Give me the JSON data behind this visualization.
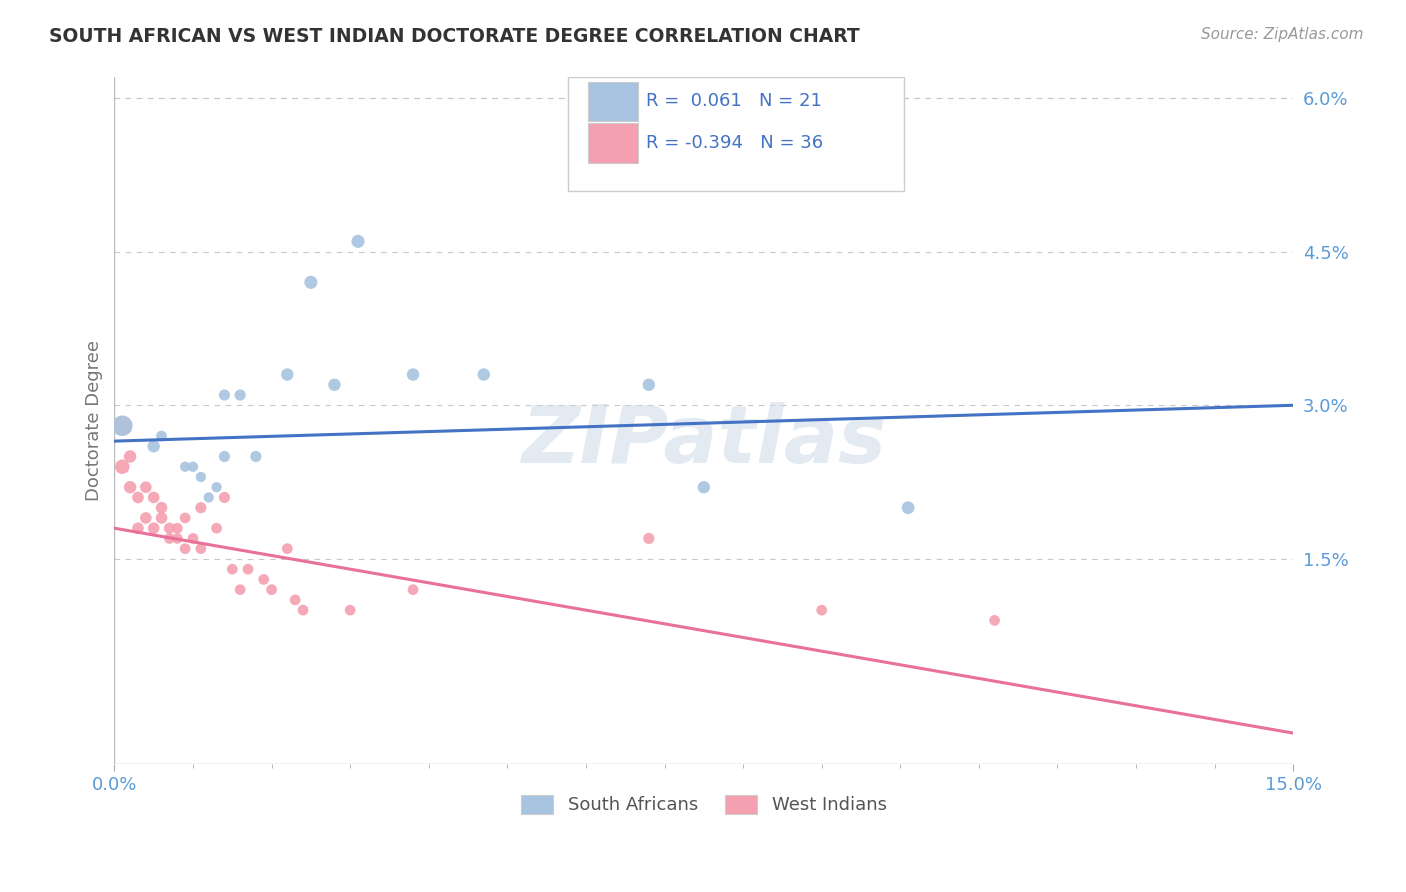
{
  "title": "SOUTH AFRICAN VS WEST INDIAN DOCTORATE DEGREE CORRELATION CHART",
  "source": "Source: ZipAtlas.com",
  "ylabel": "Doctorate Degree",
  "watermark": "ZIPatlas",
  "r_sa": 0.061,
  "n_sa": 21,
  "r_wi": -0.394,
  "n_wi": 36,
  "xlim": [
    0,
    0.15
  ],
  "ylim": [
    -0.005,
    0.062
  ],
  "yticks_right": [
    0.015,
    0.03,
    0.045,
    0.06
  ],
  "ytick_labels_right": [
    "1.5%",
    "3.0%",
    "4.5%",
    "6.0%"
  ],
  "color_sa": "#a8c4e0",
  "color_wi": "#f4a0b0",
  "line_color_sa": "#4472c4",
  "line_color_wi": "#e8709a",
  "background_color": "#ffffff",
  "grid_color": "#c8c8c8",
  "sa_points": [
    [
      0.001,
      0.028
    ],
    [
      0.005,
      0.026
    ],
    [
      0.006,
      0.027
    ],
    [
      0.009,
      0.024
    ],
    [
      0.01,
      0.024
    ],
    [
      0.011,
      0.023
    ],
    [
      0.012,
      0.021
    ],
    [
      0.013,
      0.022
    ],
    [
      0.014,
      0.025
    ],
    [
      0.014,
      0.031
    ],
    [
      0.016,
      0.031
    ],
    [
      0.018,
      0.025
    ],
    [
      0.022,
      0.033
    ],
    [
      0.025,
      0.042
    ],
    [
      0.028,
      0.032
    ],
    [
      0.031,
      0.046
    ],
    [
      0.038,
      0.033
    ],
    [
      0.047,
      0.033
    ],
    [
      0.068,
      0.032
    ],
    [
      0.075,
      0.022
    ],
    [
      0.101,
      0.02
    ]
  ],
  "wi_points": [
    [
      0.001,
      0.028
    ],
    [
      0.001,
      0.024
    ],
    [
      0.002,
      0.025
    ],
    [
      0.002,
      0.022
    ],
    [
      0.003,
      0.021
    ],
    [
      0.003,
      0.018
    ],
    [
      0.004,
      0.022
    ],
    [
      0.004,
      0.019
    ],
    [
      0.005,
      0.021
    ],
    [
      0.005,
      0.018
    ],
    [
      0.006,
      0.02
    ],
    [
      0.006,
      0.019
    ],
    [
      0.007,
      0.018
    ],
    [
      0.007,
      0.017
    ],
    [
      0.008,
      0.018
    ],
    [
      0.008,
      0.017
    ],
    [
      0.009,
      0.019
    ],
    [
      0.009,
      0.016
    ],
    [
      0.01,
      0.017
    ],
    [
      0.011,
      0.02
    ],
    [
      0.011,
      0.016
    ],
    [
      0.013,
      0.018
    ],
    [
      0.014,
      0.021
    ],
    [
      0.015,
      0.014
    ],
    [
      0.016,
      0.012
    ],
    [
      0.017,
      0.014
    ],
    [
      0.019,
      0.013
    ],
    [
      0.02,
      0.012
    ],
    [
      0.022,
      0.016
    ],
    [
      0.023,
      0.011
    ],
    [
      0.024,
      0.01
    ],
    [
      0.03,
      0.01
    ],
    [
      0.038,
      0.012
    ],
    [
      0.068,
      0.017
    ],
    [
      0.09,
      0.01
    ],
    [
      0.112,
      0.009
    ]
  ],
  "sa_sizes": [
    220,
    80,
    60,
    55,
    55,
    55,
    55,
    55,
    65,
    65,
    65,
    65,
    80,
    90,
    80,
    90,
    80,
    80,
    80,
    80,
    85
  ],
  "wi_sizes": [
    200,
    110,
    80,
    80,
    70,
    70,
    70,
    70,
    70,
    70,
    70,
    70,
    65,
    60,
    60,
    60,
    60,
    60,
    60,
    65,
    60,
    60,
    65,
    60,
    60,
    60,
    60,
    60,
    60,
    60,
    60,
    60,
    60,
    65,
    60,
    60
  ],
  "legend_sa": "South Africans",
  "legend_wi": "West Indians",
  "sa_line_endpoints": [
    [
      0.0,
      0.0265
    ],
    [
      0.15,
      0.03
    ]
  ],
  "wi_line_endpoints": [
    [
      0.0,
      0.018
    ],
    [
      0.15,
      -0.002
    ]
  ]
}
